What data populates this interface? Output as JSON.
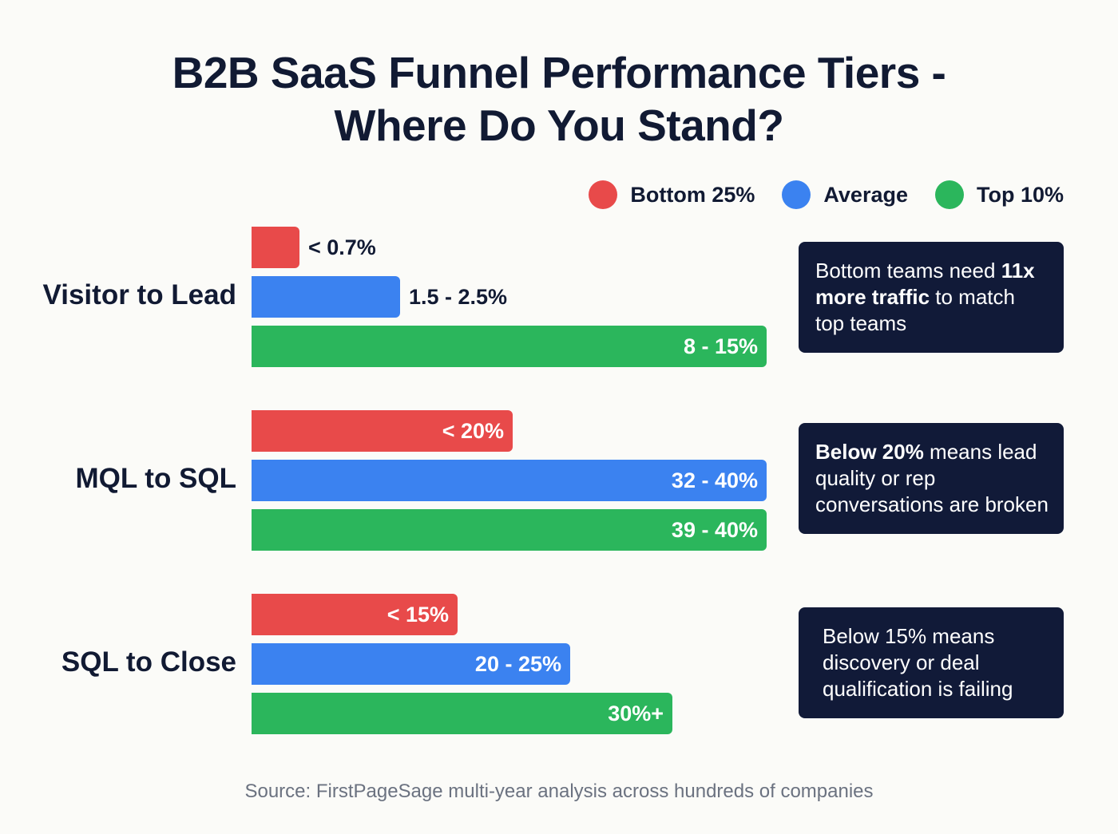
{
  "title_lines": [
    "B2B SaaS Funnel Performance Tiers -",
    "Where Do You Stand?"
  ],
  "legend": [
    {
      "label": "Bottom 25%",
      "color": "#e84a4a"
    },
    {
      "label": "Average",
      "color": "#3b82f0"
    },
    {
      "label": "Top 10%",
      "color": "#2bb65c"
    }
  ],
  "chart_data": {
    "type": "bar",
    "orientation": "horizontal",
    "title": "B2B SaaS Funnel Performance Tiers - Where Do You Stand?",
    "categories": [
      "Visitor to Lead",
      "MQL to SQL",
      "SQL to Close"
    ],
    "series": [
      {
        "name": "Bottom 25%",
        "color": "#e84a4a",
        "labels": [
          "< 0.7%",
          "< 20%",
          "< 15%"
        ],
        "bar_fraction": [
          0.093,
          0.507,
          0.4
        ]
      },
      {
        "name": "Average",
        "color": "#3b82f0",
        "labels": [
          "1.5 - 2.5%",
          "32 - 40%",
          "20 - 25%"
        ],
        "bar_fraction": [
          0.288,
          1.0,
          0.619
        ]
      },
      {
        "name": "Top 10%",
        "color": "#2bb65c",
        "labels": [
          "8 - 15%",
          "39 - 40%",
          "30%+"
        ],
        "bar_fraction": [
          1.0,
          1.0,
          0.817
        ]
      }
    ],
    "legend_position": "top-right",
    "grid": false,
    "axes_visible": false
  },
  "callouts": [
    [
      {
        "text": "Bottom teams need ",
        "bold": false
      },
      {
        "text": "11x more traffic",
        "bold": true
      },
      {
        "text": " to match top teams",
        "bold": false
      }
    ],
    [
      {
        "text": "Below 20%",
        "bold": true
      },
      {
        "text": " means lead quality or rep conversations are broken",
        "bold": false
      }
    ],
    [
      {
        "text": "Below 15% means discovery or deal qualification is failing",
        "bold": false
      }
    ]
  ],
  "source": "Source: FirstPageSage multi-year analysis across hundreds of companies"
}
